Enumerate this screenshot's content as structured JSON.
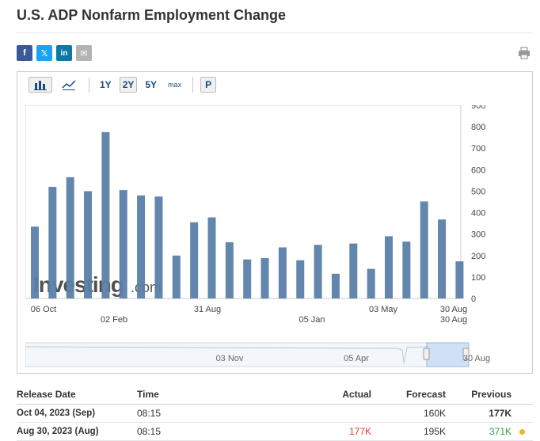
{
  "page": {
    "title": "U.S. ADP Nonfarm Employment Change"
  },
  "share": [
    {
      "name": "facebook-share-button",
      "label": "f"
    },
    {
      "name": "twitter-share-button",
      "label": "𝕏"
    },
    {
      "name": "linkedin-share-button",
      "label": "in"
    },
    {
      "name": "email-share-button",
      "label": "✉"
    }
  ],
  "toolbar": {
    "ranges": [
      "1Y",
      "2Y",
      "5Y",
      "max"
    ],
    "active_range": "2Y",
    "p_label": "P"
  },
  "chart_data": {
    "type": "bar",
    "values": [
      335,
      520,
      565,
      500,
      775,
      505,
      480,
      475,
      200,
      355,
      378,
      262,
      182,
      188,
      238,
      178,
      250,
      115,
      256,
      138,
      290,
      265,
      452,
      368,
      173
    ],
    "ylim": [
      0,
      900
    ],
    "yticks": [
      0,
      100,
      200,
      300,
      400,
      500,
      600,
      700,
      800,
      900
    ],
    "xlabels_row1": [
      "06 Oct",
      "31 Aug",
      "03 May",
      "30 Aug"
    ],
    "xlabels_row2": [
      "02 Feb",
      "05 Jan",
      "30 Aug"
    ],
    "navigator_labels": [
      "03 Nov",
      "05 Apr",
      "30 Aug"
    ],
    "watermark": "Investing.com",
    "bar_color": "#5b7fa8"
  },
  "table": {
    "headers": [
      "Release Date",
      "Time",
      "Actual",
      "Forecast",
      "Previous"
    ],
    "rows": [
      {
        "date": "Oct 04, 2023 (Sep)",
        "time": "08:15",
        "actual": "",
        "forecast": "160K",
        "previous": "177K"
      },
      {
        "date": "Aug 30, 2023 (Aug)",
        "time": "08:15",
        "actual": "177K",
        "forecast": "195K",
        "previous": "371K"
      }
    ]
  }
}
